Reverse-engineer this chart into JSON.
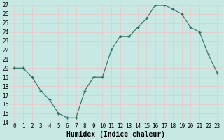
{
  "title": "",
  "xlabel": "Humidex (Indice chaleur)",
  "x": [
    0,
    1,
    2,
    3,
    4,
    5,
    6,
    7,
    8,
    9,
    10,
    11,
    12,
    13,
    14,
    15,
    16,
    17,
    18,
    19,
    20,
    21,
    22,
    23
  ],
  "y": [
    20.0,
    20.0,
    19.0,
    17.5,
    16.5,
    15.0,
    14.5,
    14.5,
    17.5,
    19.0,
    19.0,
    22.0,
    23.5,
    23.5,
    24.5,
    25.5,
    27.0,
    27.0,
    26.5,
    26.0,
    24.5,
    24.0,
    21.5,
    19.5
  ],
  "ylim": [
    14,
    27
  ],
  "yticks": [
    14,
    15,
    16,
    17,
    18,
    19,
    20,
    21,
    22,
    23,
    24,
    25,
    26,
    27
  ],
  "line_color": "#2d6e62",
  "marker": "P",
  "marker_size": 2.0,
  "bg_color": "#c8e8e4",
  "grid_color": "#e8c8c8",
  "tick_fontsize": 5.5,
  "xlabel_fontsize": 7.0
}
